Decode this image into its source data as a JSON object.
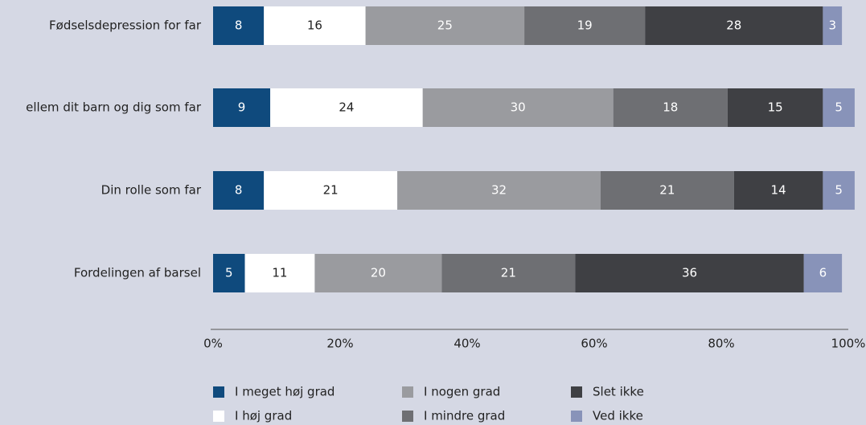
{
  "chart_data": {
    "type": "stacked_bar_horizontal",
    "categories": [
      "Fødselsdepression for far",
      "ellem dit barn og dig som far",
      "Din rolle som far",
      "Fordelingen af barsel"
    ],
    "series": [
      {
        "name": "I meget høj grad",
        "color": "#0f4a7d",
        "values": [
          8,
          9,
          8,
          5
        ]
      },
      {
        "name": "I høj grad",
        "color": "#ffffff",
        "values": [
          16,
          24,
          21,
          11
        ]
      },
      {
        "name": "I nogen grad",
        "color": "#9a9b9f",
        "values": [
          25,
          30,
          32,
          20
        ]
      },
      {
        "name": "I mindre grad",
        "color": "#6e6f73",
        "values": [
          19,
          18,
          21,
          21
        ]
      },
      {
        "name": "Slet ikke",
        "color": "#3f4044",
        "values": [
          28,
          15,
          14,
          36
        ]
      },
      {
        "name": "Ved ikke",
        "color": "#8893b9",
        "values": [
          3,
          5,
          5,
          6
        ]
      }
    ],
    "xlim": [
      0,
      100
    ],
    "xticks": [
      {
        "value": 0,
        "label": "0%"
      },
      {
        "value": 20,
        "label": "20%"
      },
      {
        "value": 40,
        "label": "40%"
      },
      {
        "value": 60,
        "label": "60%"
      },
      {
        "value": 80,
        "label": "80%"
      },
      {
        "value": 100,
        "label": "100%"
      }
    ]
  }
}
